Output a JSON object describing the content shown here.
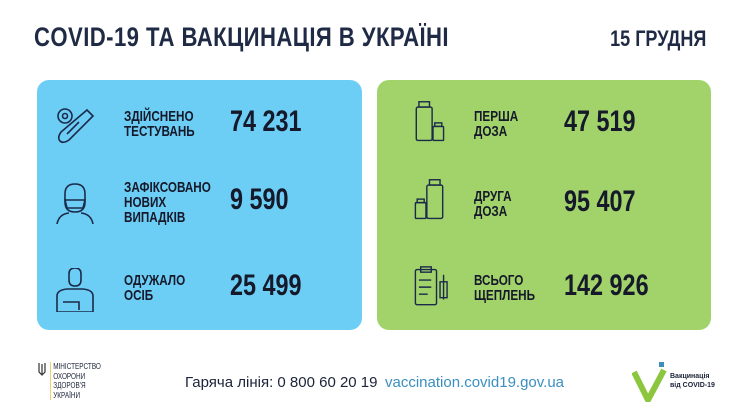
{
  "header": {
    "title": "COVID-19 ТА ВАКЦИНАЦІЯ В УКРАЇНІ",
    "date": "15 ГРУДНЯ"
  },
  "covid_panel": {
    "color": "#6dcef5",
    "items": [
      {
        "icon": "test-tube-virus-icon",
        "label_lines": [
          "ЗДІЙСНЕНО",
          "ТЕСТУВАНЬ"
        ],
        "value": "74 231"
      },
      {
        "icon": "masked-person-icon",
        "label_lines": [
          "ЗАФІКСОВАНО",
          "НОВИХ",
          "ВИПАДКІВ"
        ],
        "value": "9 590"
      },
      {
        "icon": "recovered-person-icon",
        "label_lines": [
          "ОДУЖАЛО",
          "ОСІБ"
        ],
        "value": "25 499"
      }
    ]
  },
  "vaccine_panel": {
    "color": "#a2d36a",
    "items": [
      {
        "icon": "vaccine-vials-icon",
        "label_lines": [
          "ПЕРША",
          "ДОЗА"
        ],
        "value": "47 519"
      },
      {
        "icon": "vaccine-vials-icon",
        "label_lines": [
          "ДРУГА",
          "ДОЗА"
        ],
        "value": "95 407"
      },
      {
        "icon": "clipboard-syringe-icon",
        "label_lines": [
          "ВСЬОГО",
          "ЩЕПЛЕНЬ"
        ],
        "value": "142 926"
      }
    ]
  },
  "footer": {
    "ministry_lines": [
      "МІНІСТЕРСТВО",
      "ОХОРОНИ",
      "ЗДОРОВ'Я",
      "УКРАЇНИ"
    ],
    "hotline": "Гаряча лінія: 0 800 60 20 19",
    "url": "vaccination.covid19.gov.ua",
    "vaccination_logo_lines": [
      "Вакцинація",
      "від COVID-19"
    ]
  }
}
